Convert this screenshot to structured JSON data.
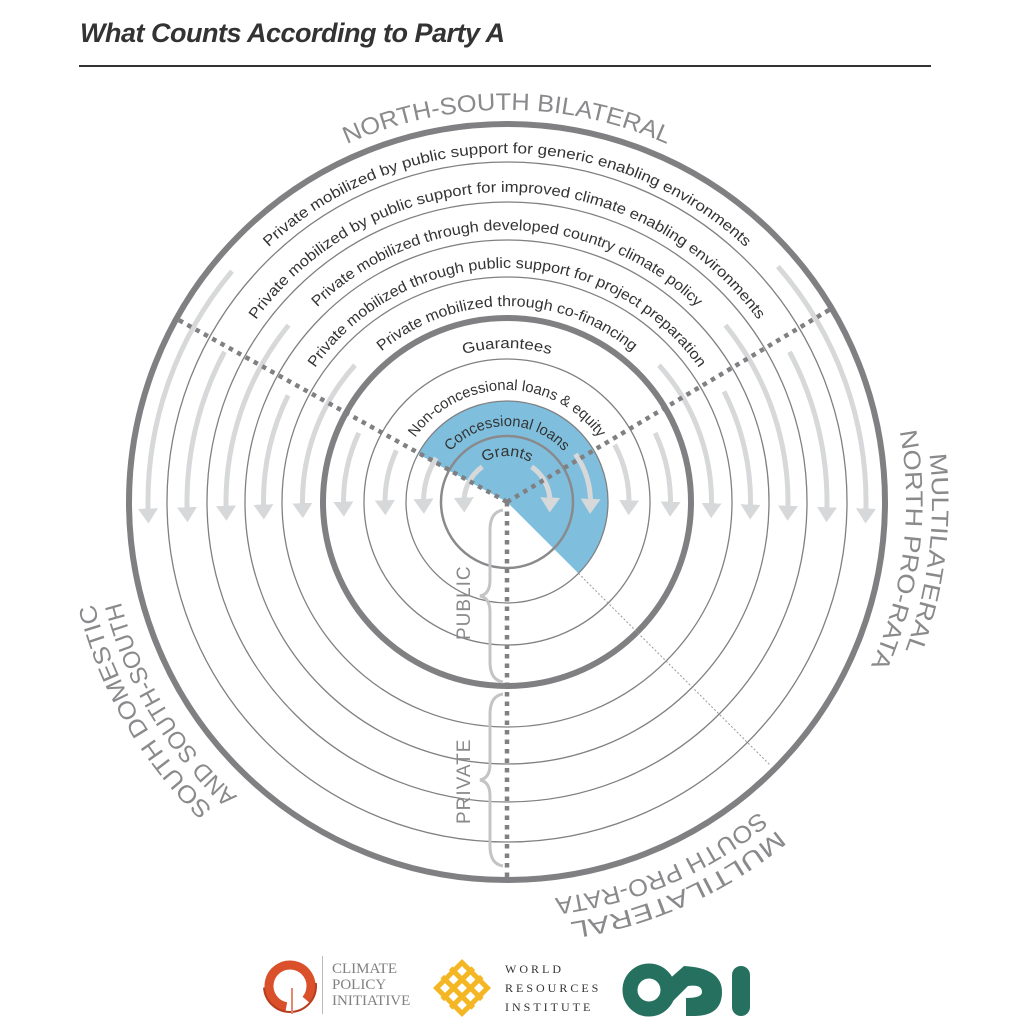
{
  "title": "What Counts According to Party A",
  "colors": {
    "ring": "#808083",
    "arrow": "#d7d8d9",
    "highlight": "#7fbfdd",
    "text": "#333333",
    "outer_text": "#8a8a8d",
    "cpi": "#d9502a",
    "wri": "#f4b623",
    "odi": "#26705f"
  },
  "rings": [
    {
      "label": "Grants",
      "counted": true
    },
    {
      "label": "Concessional loans",
      "counted": true
    },
    {
      "label": "Non-concessional loans & equity",
      "counted": false
    },
    {
      "label": "Guarantees",
      "counted": false
    },
    {
      "label": "Private mobilized through co-financing",
      "counted": false
    },
    {
      "label": "Private mobilized through public support for project preparation",
      "counted": false
    },
    {
      "label": "Private mobilized through developed country climate policy",
      "counted": false
    },
    {
      "label": "Private mobilized by public support for improved climate enabling environments",
      "counted": false
    },
    {
      "label": "Private mobilized by public support for generic enabling environments",
      "counted": false
    }
  ],
  "sectors": {
    "north_south_bilateral": "NORTH-SOUTH BILATERAL",
    "multilateral_north": [
      "MULTILATERAL",
      "NORTH PRO-RATA"
    ],
    "multilateral_south": [
      "MULTILATERAL",
      "SOUTH PRO-RATA"
    ],
    "south_domestic": [
      "SOUTH DOMESTIC",
      "AND SOUTH-SOUTH"
    ]
  },
  "braces": {
    "public": "PUBLIC",
    "private": "PRIVATE"
  },
  "logos": {
    "cpi": [
      "CLIMATE",
      "POLICY",
      "INITIATIVE"
    ],
    "wri": [
      "WORLD",
      "RESOURCES",
      "INSTITUTE"
    ],
    "odi": "ODI"
  }
}
